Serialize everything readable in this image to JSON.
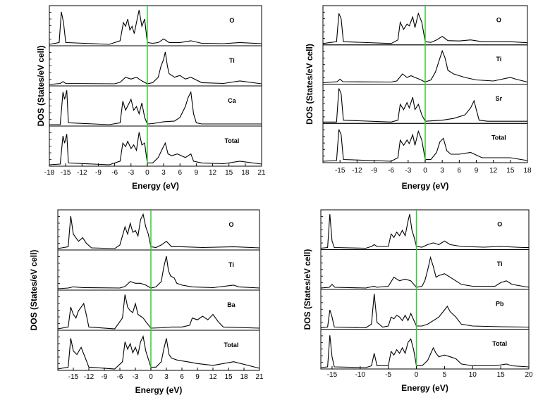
{
  "colors": {
    "fermi_line": "#33cc33",
    "curve": "#000000",
    "frame": "#000000"
  },
  "chart_data": [
    {
      "type": "line",
      "xlabel": "Energy (eV)",
      "ylabel": "DOS (States/eV cell)",
      "xlim": [
        -18,
        21
      ],
      "xticks": [
        "-18",
        "-15",
        "-12",
        "-9",
        "-6",
        "-3",
        "0",
        "3",
        "6",
        "9",
        "12",
        "15",
        "18",
        "21"
      ],
      "fermi_level": 0,
      "panel_labels": [
        "O",
        "Ti",
        "Ca",
        "Total"
      ],
      "series": [
        {
          "name": "O",
          "x": [
            -18,
            -16.2,
            -15.8,
            -15.4,
            -15,
            -7,
            -5,
            -4.4,
            -4,
            -3.6,
            -3.2,
            -2.8,
            -2.4,
            -2,
            -1.5,
            -1,
            -0.5,
            0,
            1,
            2,
            3,
            4,
            6,
            8,
            10,
            14,
            17,
            21
          ],
          "y": [
            0,
            0.05,
            0.9,
            0.6,
            0.05,
            0,
            0.1,
            0.6,
            0.5,
            0.7,
            0.4,
            0.5,
            0.3,
            0.6,
            0.95,
            0.5,
            0.7,
            0.05,
            0.03,
            0.05,
            0.15,
            0.05,
            0.05,
            0.1,
            0.03,
            0.02,
            0.05,
            0.02
          ]
        },
        {
          "name": "Ti",
          "x": [
            -18,
            -16,
            -15.5,
            -15,
            -6,
            -5,
            -4,
            -3,
            -2,
            -1.5,
            -1,
            0,
            1,
            2,
            2.5,
            3,
            3.3,
            3.7,
            4,
            5,
            6,
            7,
            8,
            10,
            14,
            17,
            21
          ],
          "y": [
            0,
            0.03,
            0.08,
            0.03,
            0.02,
            0.06,
            0.2,
            0.15,
            0.2,
            0.15,
            0.1,
            0.02,
            0.05,
            0.2,
            0.5,
            0.7,
            0.9,
            0.5,
            0.3,
            0.2,
            0.25,
            0.15,
            0.2,
            0.05,
            0.03,
            0.1,
            0.02
          ]
        },
        {
          "name": "Ca",
          "x": [
            -18,
            -16,
            -15.5,
            -15.2,
            -14.8,
            -14.5,
            -7,
            -5,
            -4.5,
            -4,
            -3,
            -2.5,
            -2,
            -1.5,
            -1,
            -0.5,
            0,
            1,
            3,
            5,
            6,
            7,
            7.5,
            8,
            8.5,
            9,
            10,
            21
          ],
          "y": [
            0,
            0,
            0.9,
            0.7,
            0.95,
            0.05,
            0,
            0.05,
            0.65,
            0.4,
            0.7,
            0.4,
            0.5,
            0.3,
            0.6,
            0.2,
            0.02,
            0.03,
            0.08,
            0.1,
            0.2,
            0.5,
            0.75,
            0.9,
            0.3,
            0.05,
            0.02,
            0.02
          ]
        },
        {
          "name": "Total",
          "x": [
            -18,
            -16,
            -15.5,
            -15.2,
            -14.8,
            -14.5,
            -7,
            -5,
            -4.5,
            -4,
            -3.6,
            -3,
            -2.5,
            -2,
            -1.5,
            -1,
            -0.5,
            0,
            1,
            2,
            2.8,
            3.3,
            3.8,
            4.5,
            5.5,
            7,
            8,
            8.5,
            10,
            14,
            17,
            21
          ],
          "y": [
            0,
            0.02,
            0.8,
            0.6,
            0.85,
            0.05,
            0,
            0.1,
            0.6,
            0.5,
            0.65,
            0.45,
            0.55,
            0.4,
            0.9,
            0.55,
            0.6,
            0.05,
            0.05,
            0.2,
            0.45,
            0.6,
            0.3,
            0.25,
            0.3,
            0.2,
            0.3,
            0.1,
            0.05,
            0.03,
            0.1,
            0.02
          ]
        }
      ]
    },
    {
      "type": "line",
      "xlabel": "Energy (eV)",
      "ylabel": "DOS (States/eV cell)",
      "xlim": [
        -18,
        18
      ],
      "xticks": [
        "-15",
        "-12",
        "-9",
        "-6",
        "-3",
        "0",
        "3",
        "6",
        "9",
        "12",
        "15",
        "18"
      ],
      "fermi_level": 0,
      "panel_labels": [
        "O",
        "Ti",
        "Sr",
        "Total"
      ],
      "series": [
        {
          "name": "O",
          "x": [
            -18,
            -15.6,
            -15.2,
            -14.8,
            -14.4,
            -6,
            -4.8,
            -4.4,
            -3.8,
            -3.2,
            -2.8,
            -2.2,
            -1.8,
            -1.2,
            -0.6,
            0,
            1,
            2,
            3,
            4,
            6,
            8,
            10,
            15,
            18
          ],
          "y": [
            0,
            0.05,
            0.85,
            0.7,
            0.05,
            0,
            0.1,
            0.6,
            0.4,
            0.55,
            0.5,
            0.75,
            0.45,
            0.85,
            0.6,
            0.05,
            0.03,
            0.1,
            0.2,
            0.08,
            0.07,
            0.1,
            0.05,
            0.05,
            0.02
          ]
        },
        {
          "name": "Ti",
          "x": [
            -18,
            -15.5,
            -15,
            -14.5,
            -6,
            -5,
            -4,
            -3.2,
            -2.5,
            -1.8,
            -1,
            0,
            1,
            1.8,
            2.4,
            3,
            3.5,
            4,
            5,
            6,
            7,
            9,
            12,
            15,
            16,
            18
          ],
          "y": [
            0,
            0.03,
            0.1,
            0.03,
            0.02,
            0.05,
            0.25,
            0.15,
            0.2,
            0.15,
            0.1,
            0.02,
            0.08,
            0.3,
            0.6,
            0.9,
            0.7,
            0.35,
            0.25,
            0.2,
            0.15,
            0.08,
            0.05,
            0.15,
            0.1,
            0.02
          ]
        },
        {
          "name": "Sr",
          "x": [
            -18,
            -15.6,
            -15.2,
            -14.8,
            -14.4,
            -6,
            -4.8,
            -4.4,
            -3.8,
            -3.2,
            -2.8,
            -2.2,
            -1.8,
            -1.2,
            -0.6,
            0,
            1,
            3,
            5,
            7,
            8,
            8.6,
            9,
            9.5,
            11,
            18
          ],
          "y": [
            0,
            0,
            0.95,
            0.8,
            0.05,
            0,
            0.05,
            0.5,
            0.35,
            0.55,
            0.4,
            0.7,
            0.35,
            0.5,
            0.2,
            0.02,
            0.03,
            0.05,
            0.1,
            0.2,
            0.4,
            0.6,
            0.35,
            0.05,
            0.02,
            0.02
          ]
        },
        {
          "name": "Total",
          "x": [
            -18,
            -15.6,
            -15.2,
            -14.8,
            -14.4,
            -6,
            -4.8,
            -4.4,
            -3.8,
            -3.2,
            -2.8,
            -2.2,
            -1.8,
            -1.2,
            -0.6,
            0,
            1,
            2,
            2.6,
            3.2,
            3.8,
            4.5,
            6,
            8,
            10,
            15,
            18
          ],
          "y": [
            0,
            0.02,
            0.9,
            0.75,
            0.05,
            0,
            0.1,
            0.6,
            0.45,
            0.6,
            0.5,
            0.75,
            0.45,
            0.85,
            0.6,
            0.05,
            0.05,
            0.25,
            0.55,
            0.65,
            0.3,
            0.2,
            0.2,
            0.25,
            0.1,
            0.1,
            0.02
          ]
        }
      ]
    },
    {
      "type": "line",
      "xlabel": "Energy (eV)",
      "ylabel": "DOS (States/eV cell)",
      "xlim": [
        -18,
        21
      ],
      "xticks": [
        "-15",
        "-12",
        "-9",
        "-6",
        "-3",
        "0",
        "3",
        "6",
        "9",
        "12",
        "15",
        "18",
        "21"
      ],
      "fermi_level": 0,
      "panel_labels": [
        "O",
        "Ti",
        "Ba",
        "Total"
      ],
      "series": [
        {
          "name": "O",
          "x": [
            -18,
            -16,
            -15.5,
            -15,
            -14,
            -13.2,
            -12.5,
            -11.5,
            -7,
            -6,
            -5,
            -4.5,
            -4,
            -3.5,
            -3,
            -2.5,
            -2,
            -1.5,
            -1,
            -0.5,
            0,
            1,
            2,
            3,
            4,
            6,
            10,
            16,
            21
          ],
          "y": [
            0,
            0.05,
            0.9,
            0.4,
            0.2,
            0.3,
            0.15,
            0.02,
            0,
            0.1,
            0.6,
            0.4,
            0.7,
            0.45,
            0.5,
            0.35,
            0.8,
            0.95,
            0.6,
            0.4,
            0.05,
            0.03,
            0.1,
            0.2,
            0.05,
            0.05,
            0.03,
            0.05,
            0.02
          ]
        },
        {
          "name": "Ti",
          "x": [
            -18,
            -16,
            -15,
            -13,
            -6,
            -5,
            -4,
            -3,
            -2,
            -1,
            0,
            1,
            2,
            2.5,
            3,
            3.4,
            3.8,
            4.5,
            5,
            6,
            8,
            12,
            16,
            17,
            21
          ],
          "y": [
            0,
            0.02,
            0.05,
            0.03,
            0.02,
            0.06,
            0.2,
            0.15,
            0.15,
            0.1,
            0.02,
            0.05,
            0.2,
            0.6,
            0.9,
            0.5,
            0.35,
            0.3,
            0.15,
            0.1,
            0.05,
            0.03,
            0.1,
            0.05,
            0.02
          ]
        },
        {
          "name": "Ba",
          "x": [
            -18,
            -16,
            -15.5,
            -15,
            -14.5,
            -14,
            -13,
            -12.5,
            -12,
            -7,
            -5.5,
            -5,
            -4.5,
            -4,
            -3.5,
            -3,
            -2.5,
            -2,
            -1.5,
            -1,
            0,
            2,
            4,
            6,
            7.5,
            8,
            9,
            10,
            11,
            12,
            13,
            14,
            21
          ],
          "y": [
            0,
            0.05,
            0.6,
            0.4,
            0.3,
            0.5,
            0.7,
            0.4,
            0.05,
            0,
            0.3,
            0.95,
            0.6,
            0.5,
            0.45,
            0.7,
            0.4,
            0.35,
            0.3,
            0.2,
            0.02,
            0.03,
            0.05,
            0.05,
            0.1,
            0.3,
            0.25,
            0.35,
            0.25,
            0.4,
            0.2,
            0.05,
            0.02
          ]
        },
        {
          "name": "Total",
          "x": [
            -18,
            -16,
            -15.5,
            -15,
            -14.3,
            -13.5,
            -12.8,
            -12,
            -7,
            -5.5,
            -5,
            -4.5,
            -4,
            -3.5,
            -3,
            -2.5,
            -2,
            -1.5,
            -1,
            0,
            1,
            2,
            2.5,
            3,
            3.5,
            4,
            5,
            7,
            9,
            12,
            16,
            21
          ],
          "y": [
            0,
            0.05,
            0.85,
            0.5,
            0.4,
            0.6,
            0.35,
            0.05,
            0,
            0.2,
            0.75,
            0.55,
            0.7,
            0.45,
            0.6,
            0.4,
            0.75,
            0.9,
            0.5,
            0.05,
            0.05,
            0.2,
            0.55,
            0.85,
            0.4,
            0.3,
            0.25,
            0.2,
            0.15,
            0.1,
            0.2,
            0.02
          ]
        }
      ]
    },
    {
      "type": "line",
      "xlabel": "Energy (eV)",
      "ylabel": "DOS (States/eV cell)",
      "xlim": [
        -17,
        20
      ],
      "xticks": [
        "-15",
        "-10",
        "-5",
        "0",
        "5",
        "10",
        "15",
        "20"
      ],
      "fermi_level": 0,
      "panel_labels": [
        "O",
        "Ti",
        "Pb",
        "Total"
      ],
      "series": [
        {
          "name": "O",
          "x": [
            -17,
            -15.8,
            -15.4,
            -15,
            -14.6,
            -9,
            -8,
            -7.5,
            -7,
            -5,
            -4.5,
            -4,
            -3.5,
            -3,
            -2.5,
            -2,
            -1.5,
            -1.2,
            -0.8,
            -0.4,
            0,
            1,
            2,
            3,
            4,
            5,
            6,
            8,
            12,
            15,
            19,
            20
          ],
          "y": [
            0,
            0.02,
            0.95,
            0.2,
            0.02,
            0,
            0.05,
            0.1,
            0.05,
            0.05,
            0.4,
            0.3,
            0.45,
            0.35,
            0.5,
            0.35,
            0.75,
            0.95,
            0.5,
            0.3,
            0.05,
            0.03,
            0.1,
            0.15,
            0.1,
            0.2,
            0.1,
            0.05,
            0.03,
            0.05,
            0.02,
            0.02
          ]
        },
        {
          "name": "Ti",
          "x": [
            -17,
            -15.5,
            -15,
            -14.5,
            -9,
            -7.5,
            -7,
            -5,
            -4,
            -3,
            -2,
            -1,
            0,
            1,
            1.5,
            2,
            2.5,
            3,
            3.5,
            4,
            5,
            6,
            7,
            8,
            10,
            14,
            15,
            16,
            17,
            20
          ],
          "y": [
            0,
            0.02,
            0.1,
            0.02,
            0,
            0.05,
            0.02,
            0.05,
            0.3,
            0.2,
            0.25,
            0.2,
            0.02,
            0.05,
            0.2,
            0.5,
            0.85,
            0.6,
            0.3,
            0.35,
            0.4,
            0.3,
            0.2,
            0.1,
            0.05,
            0.05,
            0.15,
            0.2,
            0.1,
            0.02
          ]
        },
        {
          "name": "Pb",
          "x": [
            -17,
            -15.8,
            -15.4,
            -15,
            -14.6,
            -9,
            -8,
            -7.5,
            -7,
            -6,
            -5,
            -4.5,
            -4,
            -3.5,
            -3,
            -2.5,
            -2,
            -1.5,
            -1,
            0,
            1,
            2,
            3,
            4,
            5,
            5.5,
            6,
            7,
            8,
            10,
            15,
            20
          ],
          "y": [
            0,
            0.02,
            0.5,
            0.3,
            0.02,
            0,
            0.1,
            0.95,
            0.15,
            0.02,
            0.05,
            0.3,
            0.25,
            0.35,
            0.3,
            0.2,
            0.35,
            0.2,
            0.4,
            0.05,
            0.05,
            0.1,
            0.2,
            0.3,
            0.5,
            0.6,
            0.45,
            0.3,
            0.1,
            0.05,
            0.03,
            0.02
          ]
        },
        {
          "name": "Total",
          "x": [
            -17,
            -15.8,
            -15.4,
            -15,
            -14.6,
            -9,
            -8,
            -7.5,
            -7,
            -5,
            -4.5,
            -4,
            -3.5,
            -3,
            -2.5,
            -2,
            -1.5,
            -1,
            -0.5,
            0,
            1,
            2,
            3,
            3.5,
            4,
            5,
            6,
            7,
            8,
            10,
            14,
            16,
            17,
            20
          ],
          "y": [
            0,
            0.02,
            0.9,
            0.3,
            0.02,
            0,
            0.05,
            0.4,
            0.05,
            0.05,
            0.45,
            0.35,
            0.5,
            0.4,
            0.55,
            0.4,
            0.7,
            0.8,
            0.5,
            0.05,
            0.05,
            0.2,
            0.55,
            0.4,
            0.3,
            0.35,
            0.3,
            0.25,
            0.1,
            0.05,
            0.05,
            0.1,
            0.05,
            0.02
          ]
        }
      ]
    }
  ]
}
